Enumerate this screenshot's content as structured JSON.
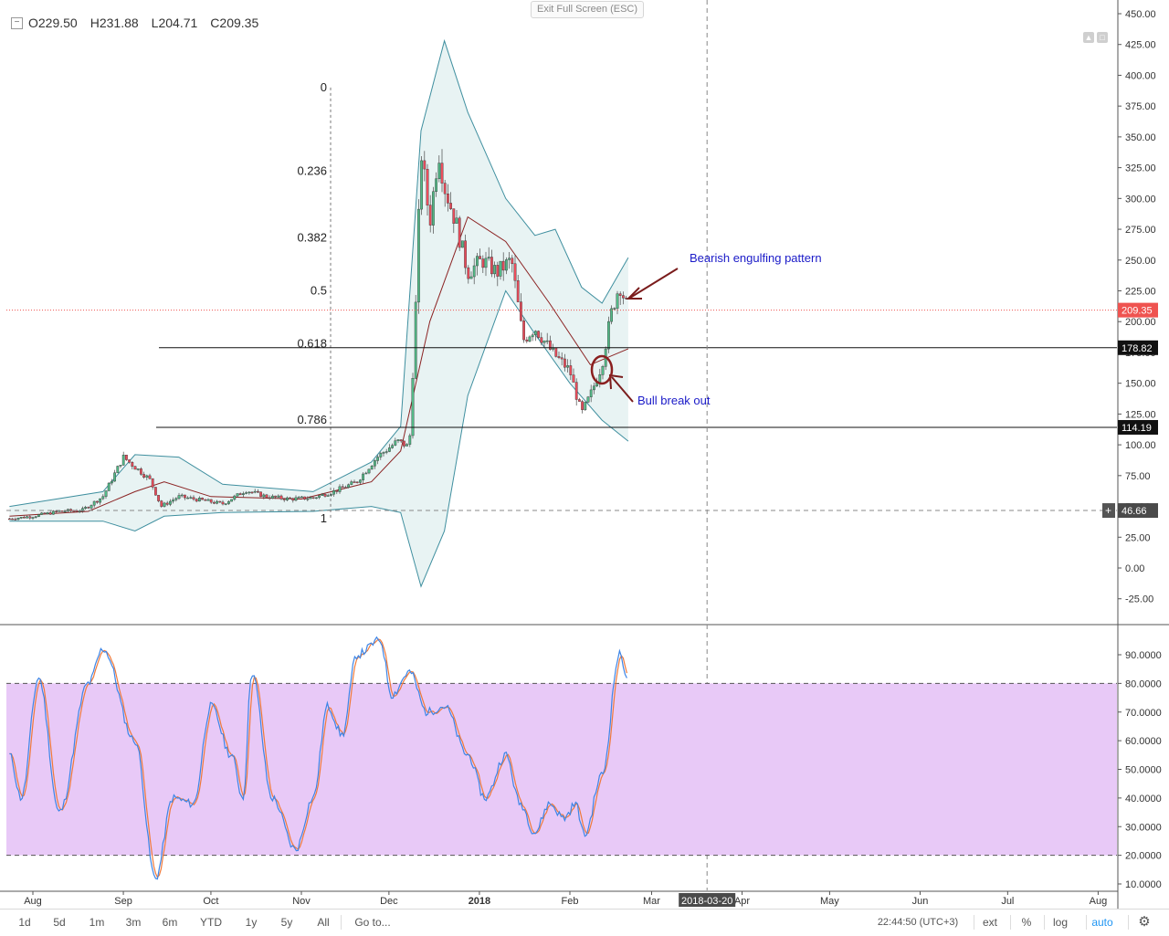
{
  "toolbar": {
    "exit_fullscreen": "Exit Full Screen (ESC)",
    "ohlc": {
      "o_label": "O",
      "o": "229.50",
      "h_label": "H",
      "h": "231.88",
      "l_label": "L",
      "l": "204.71",
      "c_label": "C",
      "c": "209.35"
    },
    "collapse_icon": "plus-square-icon",
    "corner_icons": [
      "pane-up-icon",
      "pane-maximize-icon"
    ]
  },
  "colors": {
    "up_candle": "#53b987",
    "down_candle": "#eb4d5c",
    "band_fill": "#e8f3f3",
    "band_line": "#3f8f9f",
    "basis_line": "#8b2323",
    "stoch_k": "#3d85e6",
    "stoch_d": "#f07a3a",
    "stoch_band": "#e8c9f7",
    "annotation_text": "#1a1ac8",
    "annotation_arrow": "#7a1c1c",
    "price_label": "#ef5350"
  },
  "chart_data": [
    {
      "type": "candlestick",
      "title": "",
      "ylim": [
        -40,
        455
      ],
      "yticks": [
        -25,
        0,
        25,
        50,
        75,
        100,
        125,
        150,
        175,
        200,
        225,
        250,
        275,
        300,
        325,
        350,
        375,
        400,
        425,
        450
      ],
      "ytick_labels": [
        "-25.00",
        "0.00",
        "25.00",
        "50.00",
        "75.00",
        "100.00",
        "125.00",
        "150.00",
        "175.00",
        "200.00",
        "225.00",
        "250.00",
        "275.00",
        "300.00",
        "325.00",
        "350.00",
        "375.00",
        "400.00",
        "425.00",
        "450.00"
      ],
      "x_labels": [
        {
          "label": "Aug",
          "date": "2017-08-01"
        },
        {
          "label": "Sep",
          "date": "2017-09-01"
        },
        {
          "label": "Oct",
          "date": "2017-10-01"
        },
        {
          "label": "Nov",
          "date": "2017-11-01"
        },
        {
          "label": "Dec",
          "date": "2017-12-01"
        },
        {
          "label": "2018",
          "date": "2018-01-01"
        },
        {
          "label": "Feb",
          "date": "2018-02-01"
        },
        {
          "label": "Mar",
          "date": "2018-03-01"
        },
        {
          "label": "Apr",
          "date": "2018-04-01"
        },
        {
          "label": "May",
          "date": "2018-05-01"
        },
        {
          "label": "Jun",
          "date": "2018-06-01"
        },
        {
          "label": "Jul",
          "date": "2018-07-01"
        },
        {
          "label": "Aug",
          "date": "2018-08-01"
        }
      ],
      "crosshair_date": "2018-03-20",
      "crosshair_price": 46.66,
      "last_price": 209.35,
      "close_series": [
        {
          "date": "2017-07-24",
          "close": 40
        },
        {
          "date": "2017-08-01",
          "close": 42
        },
        {
          "date": "2017-08-10",
          "close": 46
        },
        {
          "date": "2017-08-18",
          "close": 47
        },
        {
          "date": "2017-08-25",
          "close": 58
        },
        {
          "date": "2017-09-01",
          "close": 90
        },
        {
          "date": "2017-09-06",
          "close": 80
        },
        {
          "date": "2017-09-10",
          "close": 72
        },
        {
          "date": "2017-09-14",
          "close": 50
        },
        {
          "date": "2017-09-20",
          "close": 58
        },
        {
          "date": "2017-09-28",
          "close": 55
        },
        {
          "date": "2017-10-05",
          "close": 52
        },
        {
          "date": "2017-10-13",
          "close": 63
        },
        {
          "date": "2017-10-20",
          "close": 58
        },
        {
          "date": "2017-10-28",
          "close": 56
        },
        {
          "date": "2017-11-05",
          "close": 57
        },
        {
          "date": "2017-11-12",
          "close": 62
        },
        {
          "date": "2017-11-20",
          "close": 70
        },
        {
          "date": "2017-11-27",
          "close": 90
        },
        {
          "date": "2017-12-04",
          "close": 103
        },
        {
          "date": "2017-12-08",
          "close": 98
        },
        {
          "date": "2017-12-10",
          "close": 200
        },
        {
          "date": "2017-12-12",
          "close": 340
        },
        {
          "date": "2017-12-15",
          "close": 280
        },
        {
          "date": "2017-12-18",
          "close": 340
        },
        {
          "date": "2017-12-20",
          "close": 310
        },
        {
          "date": "2017-12-24",
          "close": 280
        },
        {
          "date": "2017-12-28",
          "close": 240
        },
        {
          "date": "2018-01-02",
          "close": 250
        },
        {
          "date": "2018-01-07",
          "close": 240
        },
        {
          "date": "2018-01-12",
          "close": 250
        },
        {
          "date": "2018-01-16",
          "close": 185
        },
        {
          "date": "2018-01-20",
          "close": 195
        },
        {
          "date": "2018-01-26",
          "close": 175
        },
        {
          "date": "2018-02-01",
          "close": 160
        },
        {
          "date": "2018-02-05",
          "close": 125
        },
        {
          "date": "2018-02-08",
          "close": 140
        },
        {
          "date": "2018-02-12",
          "close": 165
        },
        {
          "date": "2018-02-15",
          "close": 205
        },
        {
          "date": "2018-02-18",
          "close": 230
        },
        {
          "date": "2018-02-21",
          "close": 209.35
        }
      ],
      "bollinger_basis": [
        {
          "date": "2017-07-24",
          "v": 42
        },
        {
          "date": "2017-08-20",
          "v": 46
        },
        {
          "date": "2017-09-05",
          "v": 62
        },
        {
          "date": "2017-09-15",
          "v": 70
        },
        {
          "date": "2017-10-01",
          "v": 58
        },
        {
          "date": "2017-11-01",
          "v": 56
        },
        {
          "date": "2017-11-25",
          "v": 70
        },
        {
          "date": "2017-12-05",
          "v": 95
        },
        {
          "date": "2017-12-15",
          "v": 200
        },
        {
          "date": "2017-12-28",
          "v": 285
        },
        {
          "date": "2018-01-10",
          "v": 265
        },
        {
          "date": "2018-01-25",
          "v": 215
        },
        {
          "date": "2018-02-08",
          "v": 165
        },
        {
          "date": "2018-02-21",
          "v": 178
        }
      ],
      "bollinger_upper": [
        {
          "date": "2017-07-24",
          "v": 50
        },
        {
          "date": "2017-08-25",
          "v": 62
        },
        {
          "date": "2017-09-05",
          "v": 92
        },
        {
          "date": "2017-09-20",
          "v": 90
        },
        {
          "date": "2017-10-05",
          "v": 68
        },
        {
          "date": "2017-11-05",
          "v": 62
        },
        {
          "date": "2017-11-25",
          "v": 86
        },
        {
          "date": "2017-12-05",
          "v": 115
        },
        {
          "date": "2017-12-12",
          "v": 355
        },
        {
          "date": "2017-12-20",
          "v": 428
        },
        {
          "date": "2017-12-28",
          "v": 370
        },
        {
          "date": "2018-01-10",
          "v": 300
        },
        {
          "date": "2018-01-20",
          "v": 270
        },
        {
          "date": "2018-01-27",
          "v": 275
        },
        {
          "date": "2018-02-05",
          "v": 228
        },
        {
          "date": "2018-02-12",
          "v": 215
        },
        {
          "date": "2018-02-21",
          "v": 252
        }
      ],
      "bollinger_lower": [
        {
          "date": "2017-07-24",
          "v": 38
        },
        {
          "date": "2017-08-25",
          "v": 38
        },
        {
          "date": "2017-09-05",
          "v": 30
        },
        {
          "date": "2017-09-15",
          "v": 42
        },
        {
          "date": "2017-10-05",
          "v": 45
        },
        {
          "date": "2017-11-05",
          "v": 46
        },
        {
          "date": "2017-11-25",
          "v": 50
        },
        {
          "date": "2017-12-05",
          "v": 45
        },
        {
          "date": "2017-12-12",
          "v": -15
        },
        {
          "date": "2017-12-20",
          "v": 30
        },
        {
          "date": "2017-12-28",
          "v": 140
        },
        {
          "date": "2018-01-10",
          "v": 225
        },
        {
          "date": "2018-01-20",
          "v": 190
        },
        {
          "date": "2018-02-01",
          "v": 150
        },
        {
          "date": "2018-02-12",
          "v": 120
        },
        {
          "date": "2018-02-21",
          "v": 103
        }
      ],
      "fibonacci": {
        "levels": [
          {
            "label": "0",
            "price": 390
          },
          {
            "label": "0.236",
            "price": 322
          },
          {
            "label": "0.382",
            "price": 268
          },
          {
            "label": "0.5",
            "price": 225
          },
          {
            "label": "0.618",
            "price": 182
          },
          {
            "label": "0.786",
            "price": 120
          },
          {
            "label": "1",
            "price": 40
          }
        ]
      },
      "horizontal_lines": [
        {
          "price": 178.82,
          "label": "178.82"
        },
        {
          "price": 114.19,
          "label": "114.19"
        }
      ],
      "annotations": [
        {
          "text": "Bearish engulfing pattern"
        },
        {
          "text": "Bull break out"
        }
      ]
    },
    {
      "type": "line",
      "title": "",
      "ylim": [
        5,
        100
      ],
      "yticks": [
        10,
        20,
        30,
        40,
        50,
        60,
        70,
        80,
        90
      ],
      "ytick_labels": [
        "10.0000",
        "20.0000",
        "30.0000",
        "40.0000",
        "50.0000",
        "60.0000",
        "70.0000",
        "80.0000",
        "90.0000"
      ],
      "overbought": 80,
      "oversold": 20,
      "series": [
        {
          "name": "",
          "values": [
            {
              "date": "2017-07-24",
              "v": 55
            },
            {
              "date": "2017-07-28",
              "v": 40
            },
            {
              "date": "2017-08-03",
              "v": 82
            },
            {
              "date": "2017-08-10",
              "v": 35
            },
            {
              "date": "2017-08-20",
              "v": 80
            },
            {
              "date": "2017-08-25",
              "v": 92
            },
            {
              "date": "2017-09-05",
              "v": 60
            },
            {
              "date": "2017-09-12",
              "v": 12
            },
            {
              "date": "2017-09-18",
              "v": 40
            },
            {
              "date": "2017-09-25",
              "v": 38
            },
            {
              "date": "2017-10-01",
              "v": 72
            },
            {
              "date": "2017-10-08",
              "v": 55
            },
            {
              "date": "2017-10-12",
              "v": 40
            },
            {
              "date": "2017-10-15",
              "v": 84
            },
            {
              "date": "2017-10-22",
              "v": 40
            },
            {
              "date": "2017-10-30",
              "v": 22
            },
            {
              "date": "2017-11-05",
              "v": 40
            },
            {
              "date": "2017-11-10",
              "v": 72
            },
            {
              "date": "2017-11-15",
              "v": 62
            },
            {
              "date": "2017-11-20",
              "v": 90
            },
            {
              "date": "2017-11-28",
              "v": 95
            },
            {
              "date": "2017-12-02",
              "v": 76
            },
            {
              "date": "2017-12-08",
              "v": 84
            },
            {
              "date": "2017-12-14",
              "v": 70
            },
            {
              "date": "2017-12-20",
              "v": 72
            },
            {
              "date": "2017-12-28",
              "v": 55
            },
            {
              "date": "2018-01-03",
              "v": 40
            },
            {
              "date": "2018-01-10",
              "v": 55
            },
            {
              "date": "2018-01-15",
              "v": 38
            },
            {
              "date": "2018-01-20",
              "v": 28
            },
            {
              "date": "2018-01-25",
              "v": 38
            },
            {
              "date": "2018-01-30",
              "v": 33
            },
            {
              "date": "2018-02-03",
              "v": 38
            },
            {
              "date": "2018-02-06",
              "v": 27
            },
            {
              "date": "2018-02-12",
              "v": 48
            },
            {
              "date": "2018-02-18",
              "v": 90
            },
            {
              "date": "2018-02-21",
              "v": 82
            }
          ]
        }
      ]
    }
  ],
  "price_axis_labels": {
    "last": "209.35",
    "line1": "178.82",
    "line2": "114.19",
    "crosshair": "46.66",
    "crosshair_plus": "+"
  },
  "time_axis": {
    "crosshair_label": "2018-03-20"
  },
  "bottom_bar": {
    "ranges": [
      "1d",
      "5d",
      "1m",
      "3m",
      "6m",
      "YTD",
      "1y",
      "5y",
      "All"
    ],
    "goto": "Go to...",
    "clock": "22:44:50 (UTC+3)",
    "options": [
      "ext",
      "%",
      "log",
      "auto"
    ],
    "settings_icon": "gear-icon"
  }
}
